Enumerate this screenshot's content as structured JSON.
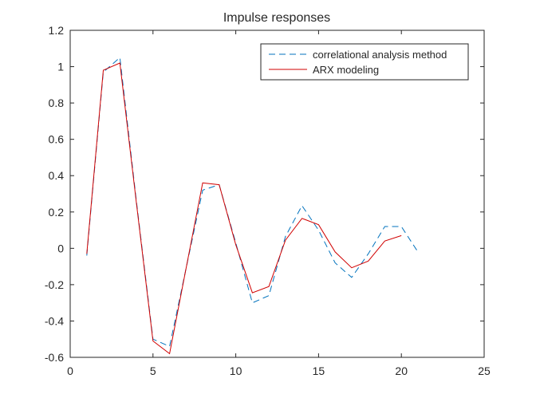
{
  "chart_data": {
    "type": "line",
    "title": "Impulse responses",
    "xlabel": "",
    "ylabel": "",
    "xlim": [
      0,
      25
    ],
    "ylim": [
      -0.6,
      1.2
    ],
    "xticks": [
      0,
      5,
      10,
      15,
      20,
      25
    ],
    "yticks": [
      -0.6,
      -0.4,
      -0.2,
      0,
      0.2,
      0.4,
      0.6,
      0.8,
      1,
      1.2
    ],
    "xtick_labels": [
      "0",
      "5",
      "10",
      "15",
      "20",
      "25"
    ],
    "ytick_labels": [
      "-0.6",
      "-0.4",
      "-0.2",
      "0",
      "0.2",
      "0.4",
      "0.6",
      "0.8",
      "1",
      "1.2"
    ],
    "grid": false,
    "legend_position": "northeast",
    "series": [
      {
        "name": "correlational analysis method",
        "color": "#0072BD",
        "style": "dashed",
        "x": [
          1,
          2,
          3,
          4,
          5,
          6,
          7,
          8,
          9,
          10,
          11,
          12,
          13,
          14,
          15,
          16,
          17,
          18,
          19,
          20,
          21
        ],
        "y": [
          -0.04,
          0.97,
          1.05,
          0.26,
          -0.5,
          -0.54,
          -0.11,
          0.32,
          0.35,
          0.03,
          -0.3,
          -0.26,
          0.065,
          0.235,
          0.1,
          -0.08,
          -0.16,
          -0.03,
          0.12,
          0.12,
          -0.02
        ]
      },
      {
        "name": "ARX modeling",
        "color": "#D95319",
        "style": "solid",
        "x": [
          1,
          2,
          3,
          4,
          5,
          6,
          7,
          8,
          9,
          10,
          11,
          12,
          13,
          14,
          15,
          16,
          17,
          18,
          19,
          20
        ],
        "y": [
          -0.03,
          0.98,
          1.02,
          0.25,
          -0.51,
          -0.58,
          -0.11,
          0.36,
          0.35,
          0.02,
          -0.245,
          -0.21,
          0.045,
          0.165,
          0.13,
          -0.02,
          -0.107,
          -0.07,
          0.04,
          0.07
        ]
      }
    ]
  }
}
